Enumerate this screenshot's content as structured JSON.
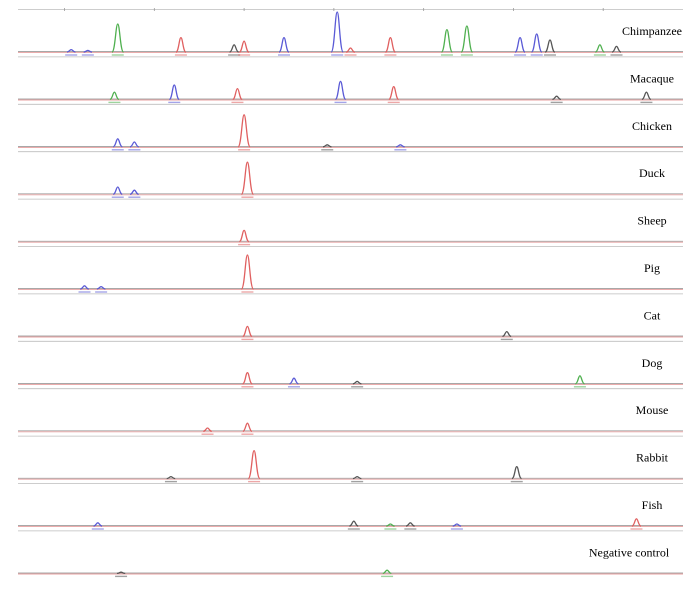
{
  "chart_data": {
    "type": "line",
    "x_unit": "",
    "panels": [
      {
        "sample": "Chimpanzee",
        "peaks": [
          {
            "x": 0.08,
            "h": 0.06,
            "dye": "blue"
          },
          {
            "x": 0.105,
            "h": 0.04,
            "dye": "blue"
          },
          {
            "x": 0.15,
            "h": 0.7,
            "dye": "green"
          },
          {
            "x": 0.245,
            "h": 0.36,
            "dye": "red"
          },
          {
            "x": 0.325,
            "h": 0.18,
            "dye": "gray"
          },
          {
            "x": 0.34,
            "h": 0.27,
            "dye": "red"
          },
          {
            "x": 0.4,
            "h": 0.36,
            "dye": "blue"
          },
          {
            "x": 0.48,
            "h": 1.0,
            "dye": "blue"
          },
          {
            "x": 0.5,
            "h": 0.1,
            "dye": "red"
          },
          {
            "x": 0.56,
            "h": 0.36,
            "dye": "red"
          },
          {
            "x": 0.645,
            "h": 0.56,
            "dye": "green"
          },
          {
            "x": 0.675,
            "h": 0.65,
            "dye": "green"
          },
          {
            "x": 0.755,
            "h": 0.36,
            "dye": "blue"
          },
          {
            "x": 0.78,
            "h": 0.45,
            "dye": "blue"
          },
          {
            "x": 0.8,
            "h": 0.3,
            "dye": "gray"
          },
          {
            "x": 0.875,
            "h": 0.18,
            "dye": "green"
          },
          {
            "x": 0.9,
            "h": 0.14,
            "dye": "gray"
          }
        ]
      },
      {
        "sample": "Macaque",
        "peaks": [
          {
            "x": 0.145,
            "h": 0.18,
            "dye": "green"
          },
          {
            "x": 0.235,
            "h": 0.36,
            "dye": "blue"
          },
          {
            "x": 0.33,
            "h": 0.27,
            "dye": "red"
          },
          {
            "x": 0.485,
            "h": 0.45,
            "dye": "blue"
          },
          {
            "x": 0.565,
            "h": 0.32,
            "dye": "red"
          },
          {
            "x": 0.81,
            "h": 0.08,
            "dye": "gray"
          },
          {
            "x": 0.945,
            "h": 0.18,
            "dye": "gray"
          }
        ]
      },
      {
        "sample": "Chicken",
        "peaks": [
          {
            "x": 0.15,
            "h": 0.2,
            "dye": "blue"
          },
          {
            "x": 0.175,
            "h": 0.12,
            "dye": "blue"
          },
          {
            "x": 0.34,
            "h": 0.8,
            "dye": "red"
          },
          {
            "x": 0.465,
            "h": 0.05,
            "dye": "gray"
          },
          {
            "x": 0.575,
            "h": 0.05,
            "dye": "blue"
          }
        ]
      },
      {
        "sample": "Duck",
        "peaks": [
          {
            "x": 0.15,
            "h": 0.18,
            "dye": "blue"
          },
          {
            "x": 0.175,
            "h": 0.1,
            "dye": "blue"
          },
          {
            "x": 0.345,
            "h": 0.8,
            "dye": "red"
          }
        ]
      },
      {
        "sample": "Sheep",
        "peaks": [
          {
            "x": 0.34,
            "h": 0.28,
            "dye": "red"
          }
        ]
      },
      {
        "sample": "Pig",
        "peaks": [
          {
            "x": 0.1,
            "h": 0.08,
            "dye": "blue"
          },
          {
            "x": 0.125,
            "h": 0.06,
            "dye": "blue"
          },
          {
            "x": 0.345,
            "h": 0.85,
            "dye": "red"
          }
        ]
      },
      {
        "sample": "Cat",
        "peaks": [
          {
            "x": 0.345,
            "h": 0.25,
            "dye": "red"
          },
          {
            "x": 0.735,
            "h": 0.12,
            "dye": "gray"
          }
        ]
      },
      {
        "sample": "Dog",
        "peaks": [
          {
            "x": 0.345,
            "h": 0.28,
            "dye": "red"
          },
          {
            "x": 0.415,
            "h": 0.14,
            "dye": "blue"
          },
          {
            "x": 0.51,
            "h": 0.06,
            "dye": "gray"
          },
          {
            "x": 0.845,
            "h": 0.2,
            "dye": "green"
          }
        ]
      },
      {
        "sample": "Mouse",
        "peaks": [
          {
            "x": 0.285,
            "h": 0.08,
            "dye": "red"
          },
          {
            "x": 0.345,
            "h": 0.2,
            "dye": "red"
          }
        ]
      },
      {
        "sample": "Rabbit",
        "peaks": [
          {
            "x": 0.23,
            "h": 0.05,
            "dye": "gray"
          },
          {
            "x": 0.355,
            "h": 0.7,
            "dye": "red"
          },
          {
            "x": 0.51,
            "h": 0.05,
            "dye": "gray"
          },
          {
            "x": 0.75,
            "h": 0.3,
            "dye": "gray"
          }
        ]
      },
      {
        "sample": "Fish",
        "peaks": [
          {
            "x": 0.12,
            "h": 0.08,
            "dye": "blue"
          },
          {
            "x": 0.505,
            "h": 0.12,
            "dye": "gray"
          },
          {
            "x": 0.56,
            "h": 0.05,
            "dye": "green"
          },
          {
            "x": 0.59,
            "h": 0.08,
            "dye": "gray"
          },
          {
            "x": 0.66,
            "h": 0.05,
            "dye": "blue"
          },
          {
            "x": 0.93,
            "h": 0.18,
            "dye": "red"
          }
        ]
      },
      {
        "sample": "Negative control",
        "peaks": [
          {
            "x": 0.155,
            "h": 0.03,
            "dye": "gray"
          },
          {
            "x": 0.555,
            "h": 0.08,
            "dye": "green"
          }
        ]
      }
    ],
    "dye_colors": {
      "blue": "#5a5ad6",
      "green": "#4fb04f",
      "red": "#e06060",
      "gray": "#555555"
    },
    "grid": false,
    "legend": "none"
  }
}
